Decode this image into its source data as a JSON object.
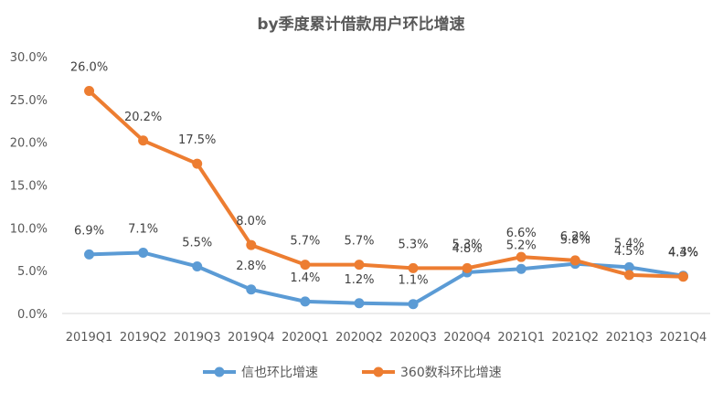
{
  "chart_data": {
    "type": "line",
    "title": "by季度累计借款用户环比增速",
    "xlabel": "",
    "ylabel": "",
    "categories": [
      "2019Q1",
      "2019Q2",
      "2019Q3",
      "2019Q4",
      "2020Q1",
      "2020Q2",
      "2020Q3",
      "2020Q4",
      "2021Q1",
      "2021Q2",
      "2021Q3",
      "2021Q4"
    ],
    "ylim": [
      0,
      30
    ],
    "yticks": [
      "0.0%",
      "5.0%",
      "10.0%",
      "15.0%",
      "20.0%",
      "25.0%",
      "30.0%"
    ],
    "grid": false,
    "legend_position": "bottom",
    "series": [
      {
        "name": "信也环比增速",
        "color": "#5B9BD5",
        "values": [
          6.9,
          7.1,
          5.5,
          2.8,
          1.4,
          1.2,
          1.1,
          4.8,
          5.2,
          5.8,
          5.4,
          4.4
        ],
        "labels": [
          "6.9%",
          "7.1%",
          "5.5%",
          "2.8%",
          "1.4%",
          "1.2%",
          "1.1%",
          "4.8%",
          "5.2%",
          "5.8%",
          "5.4%",
          "4.4%"
        ]
      },
      {
        "name": "360数科环比增速",
        "color": "#ED7D31",
        "values": [
          26.0,
          20.2,
          17.5,
          8.0,
          5.7,
          5.7,
          5.3,
          5.3,
          6.6,
          6.2,
          4.5,
          4.3
        ],
        "labels": [
          "26.0%",
          "20.2%",
          "17.5%",
          "8.0%",
          "5.7%",
          "5.7%",
          "5.3%",
          "5.3%",
          "6.6%",
          "6.2%",
          "4.5%",
          "4.3%"
        ]
      }
    ]
  }
}
